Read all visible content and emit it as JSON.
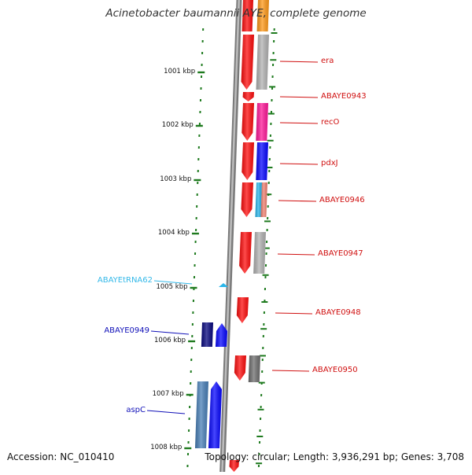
{
  "title": "Acinetobacter baumannii AYE, complete genome",
  "footer": {
    "accession": "Accession: NC_010410",
    "summary": "Topology: circular; Length: 3,936,291 bp; Genes: 3,708"
  },
  "ruler": {
    "ticks": [
      "1001 kbp",
      "1002 kbp",
      "1003 kbp",
      "1004 kbp",
      "1005 kbp",
      "1006 kbp",
      "1007 kbp",
      "1008 kbp"
    ]
  },
  "colors": {
    "red": "#ff1010",
    "orange": "#ff9a1a",
    "gray": "#b3b3b3",
    "dark_gray": "#707070",
    "magenta": "#ff1a9a",
    "blue": "#0a0aff",
    "navy": "#0a0a80",
    "cyan": "#2ab6ea",
    "salmon": "#f08070",
    "steel_blue": "#4a80b8",
    "label_red": "#d01010",
    "label_cyan": "#33b8e8",
    "label_blue": "#1010b8",
    "ruler_green": "#1e7a1e"
  },
  "genes": {
    "right": [
      {
        "name": "era"
      },
      {
        "name": "ABAYE0943"
      },
      {
        "name": "recO"
      },
      {
        "name": "pdxJ"
      },
      {
        "name": "ABAYE0946"
      },
      {
        "name": "ABAYE0947"
      },
      {
        "name": "ABAYE0948"
      },
      {
        "name": "ABAYE0950"
      }
    ],
    "left": [
      {
        "name": "ABAYEtRNA62"
      },
      {
        "name": "ABAYE0949"
      },
      {
        "name": "aspC"
      }
    ]
  }
}
